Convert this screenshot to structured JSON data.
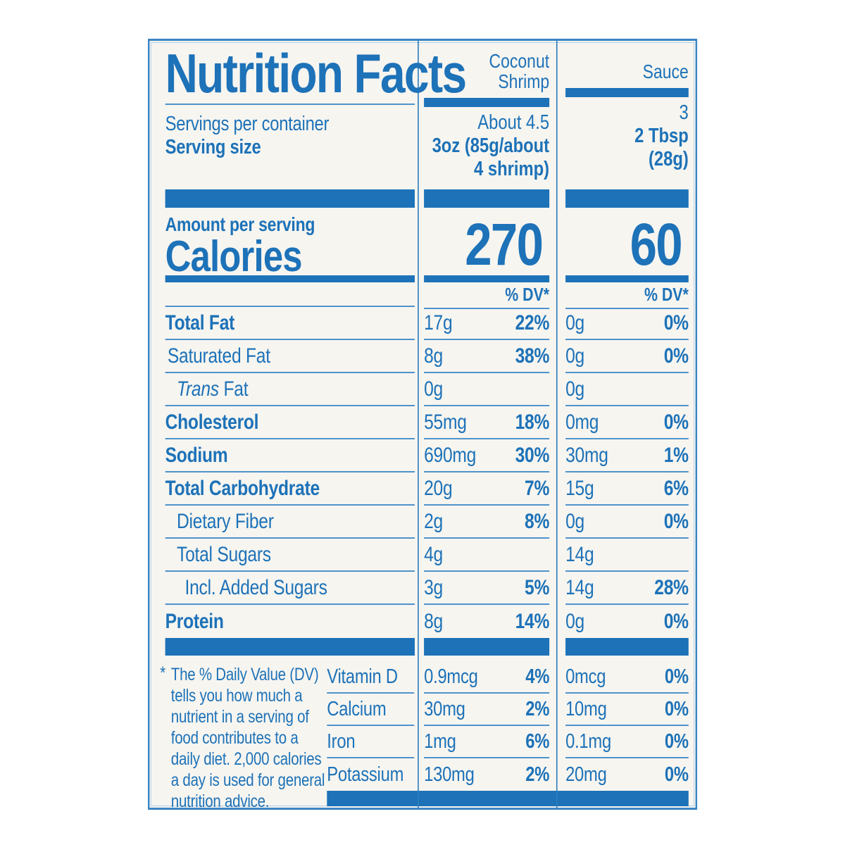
{
  "label_title": "Nutrition Facts",
  "products": [
    {
      "name_lines": [
        "Coconut",
        "Shrimp"
      ],
      "servings_per_container": "About 4.5",
      "serving_size_lines": [
        "3oz (85g/about",
        "4 shrimp)"
      ],
      "calories": "270"
    },
    {
      "name_lines": [
        "Sauce"
      ],
      "servings_per_container": "3",
      "serving_size_lines": [
        "2 Tbsp",
        "(28g)"
      ],
      "calories": "60"
    }
  ],
  "serving_section": {
    "servings_per_container_label": "Servings per container",
    "serving_size_label": "Serving size"
  },
  "calories_section": {
    "amount_per_serving_label": "Amount per serving",
    "calories_label": "Calories"
  },
  "dv_header": "% DV*",
  "nutrients": [
    {
      "name": "Total Fat",
      "p1_amount": "17g",
      "p1_dv": "22%",
      "p2_amount": "0g",
      "p2_dv": "0%"
    },
    {
      "name": "Saturated Fat",
      "p1_amount": "8g",
      "p1_dv": "38%",
      "p2_amount": "0g",
      "p2_dv": "0%"
    },
    {
      "name_italic_prefix": "Trans",
      "name": " Fat",
      "p1_amount": "0g",
      "p1_dv": "",
      "p2_amount": "0g",
      "p2_dv": ""
    },
    {
      "name": "Cholesterol",
      "p1_amount": "55mg",
      "p1_dv": "18%",
      "p2_amount": "0mg",
      "p2_dv": "0%"
    },
    {
      "name": "Sodium",
      "p1_amount": "690mg",
      "p1_dv": "30%",
      "p2_amount": "30mg",
      "p2_dv": "1%"
    },
    {
      "name": "Total Carbohydrate",
      "p1_amount": "20g",
      "p1_dv": "7%",
      "p2_amount": "15g",
      "p2_dv": "6%"
    },
    {
      "name": "Dietary Fiber",
      "p1_amount": "2g",
      "p1_dv": "8%",
      "p2_amount": "0g",
      "p2_dv": "0%"
    },
    {
      "name": "Total Sugars",
      "p1_amount": "4g",
      "p1_dv": "",
      "p2_amount": "14g",
      "p2_dv": ""
    },
    {
      "name": "Incl. Added Sugars",
      "p1_amount": "3g",
      "p1_dv": "5%",
      "p2_amount": "14g",
      "p2_dv": "28%"
    },
    {
      "name": "Protein",
      "p1_amount": "8g",
      "p1_dv": "14%",
      "p2_amount": "0g",
      "p2_dv": "0%"
    }
  ],
  "vitamins": [
    {
      "name": "Vitamin D",
      "p1_amount": "0.9mcg",
      "p1_dv": "4%",
      "p2_amount": "0mcg",
      "p2_dv": "0%"
    },
    {
      "name": "Calcium",
      "p1_amount": "30mg",
      "p1_dv": "2%",
      "p2_amount": "10mg",
      "p2_dv": "0%"
    },
    {
      "name": "Iron",
      "p1_amount": "1mg",
      "p1_dv": "6%",
      "p2_amount": "0.1mg",
      "p2_dv": "0%"
    },
    {
      "name": "Potassium",
      "p1_amount": "130mg",
      "p1_dv": "2%",
      "p2_amount": "20mg",
      "p2_dv": "0%"
    }
  ],
  "footnote": {
    "marker": "*",
    "lines": [
      "The % Daily Value (DV)",
      "tells you how much a",
      "nutrient in a serving of",
      "food contributes to a",
      "daily diet. 2,000 calories",
      "a day is used for general",
      "nutrition advice."
    ]
  },
  "colors": {
    "blue": "#1d72b8",
    "thin_rule": "#4e93cc",
    "border": "#3b86c4",
    "background": "#f7f5f0"
  }
}
